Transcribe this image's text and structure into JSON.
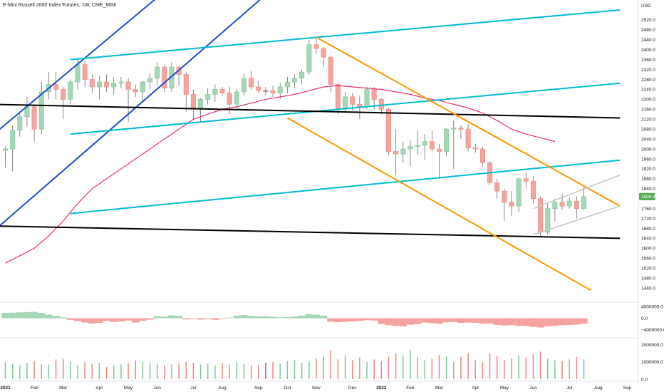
{
  "title": "E-Mini Russell 2000 Index Futures, 1W, CME_MINI",
  "chart_data": {
    "type": "candlestick",
    "title": "E-Mini Russell 2000 Index Futures, 1W, CME_MINI",
    "currency": "USD",
    "last_price": "1808.4",
    "price_axis": {
      "ylim": [
        1400,
        2560
      ],
      "ticks": [
        2520,
        2480,
        2440,
        2400,
        2360,
        2320,
        2280,
        2240,
        2200,
        2160,
        2120,
        2080,
        2040,
        2000,
        1960,
        1920,
        1880,
        1840,
        1800,
        1760,
        1720,
        1680,
        1640,
        1600,
        1560,
        1520,
        1480,
        1440
      ],
      "tick_labels": [
        "2520.0",
        "2480.0",
        "2440.0",
        "2400.0",
        "2360.0",
        "2320.0",
        "2280.0",
        "2240.0",
        "2200.0",
        "2160.0",
        "2120.0",
        "2080.0",
        "2040.0",
        "2000.0",
        "1960.0",
        "1920.0",
        "1880.0",
        "1840.0",
        "1800.0",
        "1760.0",
        "1720.0",
        "1680.0",
        "1640.0",
        "1600.0",
        "1560.0",
        "1520.0",
        "1480.0",
        "1440.0"
      ]
    },
    "oscillator_axis": {
      "ylim": [
        -6000000,
        5500000
      ],
      "ticks": [
        4000000,
        0,
        -4000000
      ],
      "tick_labels": [
        "4000000.0",
        "0.0",
        "−4000000.0"
      ]
    },
    "volume_axis": {
      "ylim": [
        0,
        2400000
      ],
      "ticks": [
        2000000,
        1000000,
        0
      ],
      "tick_labels": [
        "2000000.0",
        "1000000.0",
        "0.0"
      ]
    },
    "time_axis": {
      "labels": [
        {
          "text": "2021",
          "bar": 0,
          "bold": true
        },
        {
          "text": "Feb",
          "bar": 4
        },
        {
          "text": "Mar",
          "bar": 8
        },
        {
          "text": "Apr",
          "bar": 13
        },
        {
          "text": "May",
          "bar": 17
        },
        {
          "text": "Jun",
          "bar": 21
        },
        {
          "text": "Jul",
          "bar": 26
        },
        {
          "text": "Aug",
          "bar": 30
        },
        {
          "text": "Sep",
          "bar": 35
        },
        {
          "text": "Oct",
          "bar": 39
        },
        {
          "text": "Nov",
          "bar": 43
        },
        {
          "text": "Dec",
          "bar": 48
        },
        {
          "text": "2022",
          "bar": 52,
          "bold": true
        },
        {
          "text": "Feb",
          "bar": 56
        },
        {
          "text": "Mar",
          "bar": 60
        },
        {
          "text": "Apr",
          "bar": 65
        },
        {
          "text": "May",
          "bar": 69
        },
        {
          "text": "Jun",
          "bar": 73
        },
        {
          "text": "Jul",
          "bar": 78
        },
        {
          "text": "Aug",
          "bar": 82
        },
        {
          "text": "Sep",
          "bar": 86
        }
      ]
    },
    "candles": [
      {
        "o": 1995,
        "h": 2010,
        "l": 1925,
        "c": 2000
      },
      {
        "o": 2000,
        "h": 2095,
        "l": 1910,
        "c": 2075
      },
      {
        "o": 2075,
        "h": 2150,
        "l": 2050,
        "c": 2130
      },
      {
        "o": 2130,
        "h": 2210,
        "l": 2090,
        "c": 2170
      },
      {
        "o": 2170,
        "h": 2180,
        "l": 2030,
        "c": 2080
      },
      {
        "o": 2080,
        "h": 2270,
        "l": 2060,
        "c": 2230
      },
      {
        "o": 2230,
        "h": 2310,
        "l": 2200,
        "c": 2260
      },
      {
        "o": 2260,
        "h": 2310,
        "l": 2200,
        "c": 2240
      },
      {
        "o": 2240,
        "h": 2250,
        "l": 2120,
        "c": 2200
      },
      {
        "o": 2200,
        "h": 2280,
        "l": 2180,
        "c": 2270
      },
      {
        "o": 2270,
        "h": 2360,
        "l": 2240,
        "c": 2340
      },
      {
        "o": 2340,
        "h": 2355,
        "l": 2250,
        "c": 2280
      },
      {
        "o": 2280,
        "h": 2300,
        "l": 2225,
        "c": 2250
      },
      {
        "o": 2250,
        "h": 2295,
        "l": 2200,
        "c": 2270
      },
      {
        "o": 2270,
        "h": 2300,
        "l": 2230,
        "c": 2250
      },
      {
        "o": 2250,
        "h": 2290,
        "l": 2220,
        "c": 2265
      },
      {
        "o": 2265,
        "h": 2290,
        "l": 2245,
        "c": 2270
      },
      {
        "o": 2270,
        "h": 2285,
        "l": 2110,
        "c": 2240
      },
      {
        "o": 2240,
        "h": 2260,
        "l": 2210,
        "c": 2230
      },
      {
        "o": 2230,
        "h": 2275,
        "l": 2195,
        "c": 2270
      },
      {
        "o": 2270,
        "h": 2305,
        "l": 2240,
        "c": 2285
      },
      {
        "o": 2285,
        "h": 2350,
        "l": 2255,
        "c": 2330
      },
      {
        "o": 2330,
        "h": 2340,
        "l": 2230,
        "c": 2245
      },
      {
        "o": 2245,
        "h": 2350,
        "l": 2230,
        "c": 2330
      },
      {
        "o": 2330,
        "h": 2335,
        "l": 2255,
        "c": 2300
      },
      {
        "o": 2300,
        "h": 2310,
        "l": 2150,
        "c": 2220
      },
      {
        "o": 2220,
        "h": 2240,
        "l": 2120,
        "c": 2160
      },
      {
        "o": 2160,
        "h": 2205,
        "l": 2110,
        "c": 2200
      },
      {
        "o": 2200,
        "h": 2245,
        "l": 2180,
        "c": 2220
      },
      {
        "o": 2220,
        "h": 2260,
        "l": 2190,
        "c": 2240
      },
      {
        "o": 2240,
        "h": 2250,
        "l": 2215,
        "c": 2225
      },
      {
        "o": 2225,
        "h": 2250,
        "l": 2140,
        "c": 2180
      },
      {
        "o": 2180,
        "h": 2240,
        "l": 2160,
        "c": 2230
      },
      {
        "o": 2230,
        "h": 2305,
        "l": 2215,
        "c": 2285
      },
      {
        "o": 2285,
        "h": 2315,
        "l": 2240,
        "c": 2250
      },
      {
        "o": 2250,
        "h": 2275,
        "l": 2225,
        "c": 2235
      },
      {
        "o": 2235,
        "h": 2250,
        "l": 2215,
        "c": 2235
      },
      {
        "o": 2235,
        "h": 2255,
        "l": 2210,
        "c": 2225
      },
      {
        "o": 2225,
        "h": 2265,
        "l": 2200,
        "c": 2250
      },
      {
        "o": 2250,
        "h": 2290,
        "l": 2225,
        "c": 2270
      },
      {
        "o": 2270,
        "h": 2300,
        "l": 2245,
        "c": 2285
      },
      {
        "o": 2285,
        "h": 2320,
        "l": 2260,
        "c": 2310
      },
      {
        "o": 2310,
        "h": 2440,
        "l": 2300,
        "c": 2420
      },
      {
        "o": 2420,
        "h": 2445,
        "l": 2385,
        "c": 2405
      },
      {
        "o": 2405,
        "h": 2410,
        "l": 2330,
        "c": 2370
      },
      {
        "o": 2370,
        "h": 2375,
        "l": 2230,
        "c": 2260
      },
      {
        "o": 2260,
        "h": 2265,
        "l": 2140,
        "c": 2160
      },
      {
        "o": 2160,
        "h": 2230,
        "l": 2145,
        "c": 2210
      },
      {
        "o": 2210,
        "h": 2225,
        "l": 2155,
        "c": 2180
      },
      {
        "o": 2180,
        "h": 2215,
        "l": 2120,
        "c": 2170
      },
      {
        "o": 2170,
        "h": 2250,
        "l": 2160,
        "c": 2240
      },
      {
        "o": 2240,
        "h": 2250,
        "l": 2160,
        "c": 2200
      },
      {
        "o": 2200,
        "h": 2205,
        "l": 2140,
        "c": 2160
      },
      {
        "o": 2160,
        "h": 2165,
        "l": 1975,
        "c": 1990
      },
      {
        "o": 1990,
        "h": 2080,
        "l": 1895,
        "c": 1980
      },
      {
        "o": 1980,
        "h": 2030,
        "l": 1945,
        "c": 2000
      },
      {
        "o": 2000,
        "h": 2035,
        "l": 1930,
        "c": 2010
      },
      {
        "o": 2010,
        "h": 2075,
        "l": 1975,
        "c": 2015
      },
      {
        "o": 2015,
        "h": 2060,
        "l": 1955,
        "c": 2030
      },
      {
        "o": 2030,
        "h": 2075,
        "l": 1990,
        "c": 2000
      },
      {
        "o": 2000,
        "h": 2020,
        "l": 1880,
        "c": 1990
      },
      {
        "o": 1990,
        "h": 2085,
        "l": 1970,
        "c": 2080
      },
      {
        "o": 2080,
        "h": 2115,
        "l": 1920,
        "c": 2085
      },
      {
        "o": 2085,
        "h": 2095,
        "l": 2040,
        "c": 2080
      },
      {
        "o": 2080,
        "h": 2100,
        "l": 1990,
        "c": 2005
      },
      {
        "o": 2005,
        "h": 2020,
        "l": 1985,
        "c": 2000
      },
      {
        "o": 2000,
        "h": 2010,
        "l": 1930,
        "c": 1945
      },
      {
        "o": 1945,
        "h": 1950,
        "l": 1855,
        "c": 1865
      },
      {
        "o": 1865,
        "h": 1880,
        "l": 1800,
        "c": 1830
      },
      {
        "o": 1830,
        "h": 1840,
        "l": 1710,
        "c": 1785
      },
      {
        "o": 1785,
        "h": 1830,
        "l": 1730,
        "c": 1770
      },
      {
        "o": 1770,
        "h": 1885,
        "l": 1745,
        "c": 1880
      },
      {
        "o": 1880,
        "h": 1905,
        "l": 1840,
        "c": 1870
      },
      {
        "o": 1870,
        "h": 1890,
        "l": 1780,
        "c": 1800
      },
      {
        "o": 1800,
        "h": 1810,
        "l": 1650,
        "c": 1665
      },
      {
        "o": 1665,
        "h": 1780,
        "l": 1655,
        "c": 1760
      },
      {
        "o": 1760,
        "h": 1800,
        "l": 1710,
        "c": 1785
      },
      {
        "o": 1785,
        "h": 1820,
        "l": 1755,
        "c": 1770
      },
      {
        "o": 1770,
        "h": 1805,
        "l": 1760,
        "c": 1790
      },
      {
        "o": 1790,
        "h": 1810,
        "l": 1720,
        "c": 1760
      },
      {
        "o": 1760,
        "h": 1850,
        "l": 1755,
        "c": 1808
      }
    ],
    "moving_average": {
      "name": "MA",
      "color": "#e91e63",
      "points": [
        [
          0,
          1540
        ],
        [
          2,
          1570
        ],
        [
          4,
          1600
        ],
        [
          6,
          1650
        ],
        [
          8,
          1710
        ],
        [
          10,
          1780
        ],
        [
          12,
          1840
        ],
        [
          14,
          1880
        ],
        [
          16,
          1920
        ],
        [
          18,
          1960
        ],
        [
          20,
          2000
        ],
        [
          22,
          2040
        ],
        [
          24,
          2080
        ],
        [
          26,
          2120
        ],
        [
          28,
          2140
        ],
        [
          30,
          2160
        ],
        [
          32,
          2170
        ],
        [
          34,
          2185
        ],
        [
          36,
          2200
        ],
        [
          38,
          2210
        ],
        [
          40,
          2220
        ],
        [
          42,
          2235
        ],
        [
          44,
          2250
        ],
        [
          46,
          2255
        ],
        [
          48,
          2250
        ],
        [
          50,
          2245
        ],
        [
          52,
          2240
        ],
        [
          54,
          2230
        ],
        [
          56,
          2220
        ],
        [
          58,
          2205
        ],
        [
          60,
          2195
        ],
        [
          62,
          2180
        ],
        [
          64,
          2165
        ],
        [
          66,
          2145
        ],
        [
          68,
          2115
        ],
        [
          70,
          2080
        ],
        [
          72,
          2060
        ],
        [
          74,
          2045
        ],
        [
          76,
          2030
        ]
      ]
    },
    "oscillator": [
      1800000,
      1900000,
      2000000,
      2100000,
      2200000,
      1800000,
      1200000,
      800000,
      300000,
      -600000,
      -1000000,
      -1500000,
      -1800000,
      -1600000,
      -900000,
      -1300000,
      -1100000,
      -800000,
      -1500000,
      -900000,
      -500000,
      700000,
      500000,
      1000000,
      800000,
      -400000,
      -200000,
      -500000,
      -300000,
      -600000,
      -200000,
      200000,
      900000,
      1100000,
      800000,
      600000,
      700000,
      500000,
      300000,
      400000,
      600000,
      900000,
      1400000,
      1200000,
      900000,
      -1200000,
      -1400000,
      -1300000,
      -1100000,
      -900000,
      -700000,
      -800000,
      -2000000,
      -2400000,
      -2600000,
      -2800000,
      -2200000,
      -2000000,
      -1500000,
      -1700000,
      -1900000,
      -1400000,
      -1300000,
      -1600000,
      -1500000,
      -1600000,
      -1900000,
      -1800000,
      -2300000,
      -2500000,
      -2400000,
      -2600000,
      -2700000,
      -3000000,
      -3200000,
      -2800000,
      -2600000,
      -2400000,
      -2300000,
      -2200000,
      -1900000
    ],
    "volume": [
      1000000,
      900000,
      800000,
      950000,
      1050000,
      900000,
      850000,
      1150000,
      1200000,
      1000000,
      800000,
      1000000,
      900000,
      950000,
      700000,
      800000,
      850000,
      900000,
      1100000,
      1000000,
      950000,
      900000,
      800000,
      850000,
      900000,
      1000000,
      950000,
      850000,
      900000,
      800000,
      950000,
      850000,
      1000000,
      900000,
      800000,
      850000,
      950000,
      1000000,
      900000,
      1050000,
      1100000,
      950000,
      1000000,
      1200000,
      1300000,
      1700000,
      1150000,
      1400000,
      1100000,
      1250000,
      1000000,
      1150000,
      1050000,
      1300000,
      1500000,
      1350000,
      1700000,
      1300000,
      1100000,
      1200000,
      1400000,
      1350000,
      1000000,
      1300000,
      1500000,
      1100000,
      1000000,
      1500000,
      1350000,
      1100000,
      1200000,
      1400000,
      1250000,
      1450000,
      1600000,
      1200000,
      1100000,
      1050000,
      1150000,
      1300000,
      1150000
    ],
    "trendlines": [
      {
        "name": "blue-channel-upper",
        "color": "#1f4fcc",
        "p1": [
          -2,
          2050
        ],
        "p2": [
          37,
          3000
        ]
      },
      {
        "name": "blue-channel-lower",
        "color": "#1f4fcc",
        "p1": [
          -2,
          1660
        ],
        "p2": [
          49,
          2950
        ]
      },
      {
        "name": "cyan-line-top",
        "color": "#00bcd4",
        "p1": [
          9,
          2360
        ],
        "p2": [
          85,
          2560
        ]
      },
      {
        "name": "cyan-line-mid",
        "color": "#00bcd4",
        "p1": [
          9,
          2060
        ],
        "p2": [
          85,
          2265
        ]
      },
      {
        "name": "cyan-line-low",
        "color": "#00bcd4",
        "p1": [
          9,
          1740
        ],
        "p2": [
          85,
          1955
        ]
      },
      {
        "name": "black-line-upper",
        "color": "#000000",
        "p1": [
          -2,
          2180
        ],
        "p2": [
          85,
          2125
        ]
      },
      {
        "name": "black-line-lower",
        "color": "#000000",
        "p1": [
          -2,
          1690
        ],
        "p2": [
          85,
          1640
        ]
      },
      {
        "name": "orange-channel-upper",
        "color": "#ff9800",
        "p1": [
          43,
          2450
        ],
        "p2": [
          85,
          1770
        ]
      },
      {
        "name": "orange-channel-lower",
        "color": "#ff9800",
        "p1": [
          39,
          2125
        ],
        "p2": [
          81,
          1430
        ]
      },
      {
        "name": "grey-channel-upper",
        "color": "#c8c8c8",
        "p1": [
          73,
          1760
        ],
        "p2": [
          85,
          1895
        ]
      },
      {
        "name": "grey-channel-lower",
        "color": "#c8c8c8",
        "p1": [
          73,
          1655
        ],
        "p2": [
          85,
          1770
        ]
      }
    ],
    "colors": {
      "up": "#a5d6b5",
      "up_border": "#7fc597",
      "down": "#f4a4a0",
      "down_border": "#ee8580",
      "neutral": "#777777",
      "badge": "#4caf50"
    }
  }
}
